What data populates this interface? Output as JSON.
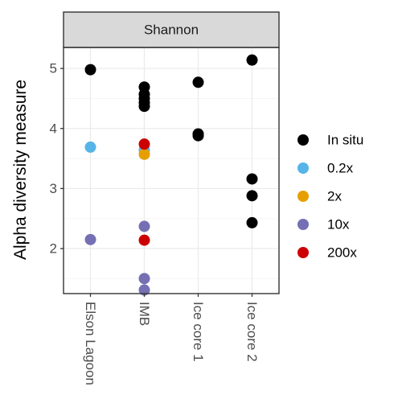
{
  "chart_data": {
    "type": "scatter",
    "facet_label": "Shannon",
    "ylabel": "Alpha diversity measure",
    "xlabel": "",
    "categories": [
      "Elson Lagoon",
      "IMB",
      "Ice core 1",
      "Ice core 2"
    ],
    "ylim": [
      1.25,
      5.35
    ],
    "yticks": [
      2,
      3,
      4,
      5
    ],
    "grid": true,
    "legend_position": "right",
    "series": [
      {
        "name": "In situ",
        "color": "#000000",
        "points": [
          {
            "x": "Elson Lagoon",
            "y": 4.98
          },
          {
            "x": "IMB",
            "y": 4.69
          },
          {
            "x": "IMB",
            "y": 4.57
          },
          {
            "x": "IMB",
            "y": 4.5
          },
          {
            "x": "IMB",
            "y": 4.43
          },
          {
            "x": "IMB",
            "y": 4.37
          },
          {
            "x": "Ice core 1",
            "y": 4.77
          },
          {
            "x": "Ice core 1",
            "y": 3.91
          },
          {
            "x": "Ice core 1",
            "y": 3.88
          },
          {
            "x": "Ice core 2",
            "y": 5.14
          },
          {
            "x": "Ice core 2",
            "y": 3.16
          },
          {
            "x": "Ice core 2",
            "y": 2.88
          },
          {
            "x": "Ice core 2",
            "y": 2.43
          }
        ]
      },
      {
        "name": "0.2x",
        "color": "#56B4E9",
        "points": [
          {
            "x": "Elson Lagoon",
            "y": 3.69
          },
          {
            "x": "IMB",
            "y": 3.64
          }
        ]
      },
      {
        "name": "2x",
        "color": "#E69F00",
        "points": [
          {
            "x": "IMB",
            "y": 3.57
          }
        ]
      },
      {
        "name": "10x",
        "color": "#7570B3",
        "points": [
          {
            "x": "Elson Lagoon",
            "y": 2.15
          },
          {
            "x": "IMB",
            "y": 2.37
          },
          {
            "x": "IMB",
            "y": 1.5
          },
          {
            "x": "IMB",
            "y": 1.31
          }
        ]
      },
      {
        "name": "200x",
        "color": "#CC0000",
        "points": [
          {
            "x": "IMB",
            "y": 3.74
          },
          {
            "x": "IMB",
            "y": 2.14
          }
        ]
      }
    ]
  },
  "colors": {
    "panel_border": "#333333",
    "strip_fill": "#d9d9d9",
    "grid_major": "#ebebeb",
    "grid_minor": "#f5f5f5"
  }
}
